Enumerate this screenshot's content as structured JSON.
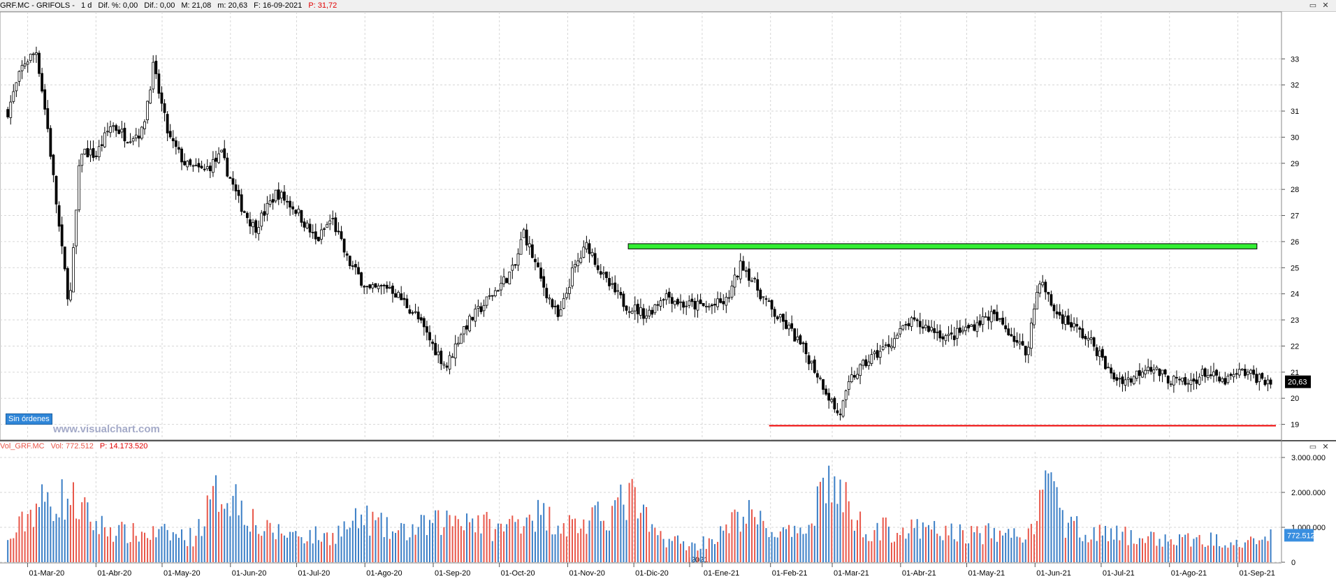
{
  "header": {
    "symbol": "GRF.MC - GRIFOLS -",
    "period": "1 d",
    "dif_pct": "Dif. %: 0,00",
    "dif": "Dif.: 0,00",
    "max": "M: 21,08",
    "min": "m: 20,63",
    "date": "F: 16-09-2021",
    "pointer": "P: 31,72"
  },
  "window_controls": {
    "minimize": "▭",
    "close": "✕"
  },
  "volume_header": {
    "name": "Vol_GRF.MC",
    "vol": "Vol: 772.512",
    "pointer": "P: 14.173.520"
  },
  "badges": {
    "orders": "Sin órdenes",
    "watermark": "www.visualchart.com"
  },
  "colors": {
    "up_volume": "#e8574a",
    "down_volume": "#3a7ec6",
    "resistance": "#33ee33",
    "support": "#ee0000",
    "last_price_tag": "#000000",
    "last_volume_tag": "#3a8fe0"
  },
  "chart_data": [
    {
      "type": "candlestick",
      "title": "GRF.MC - GRIFOLS - 1 d",
      "x_ticks": [
        "01-Mar-20",
        "01-Abr-20",
        "01-May-20",
        "01-Jun-20",
        "01-Jul-20",
        "01-Ago-20",
        "01-Sep-20",
        "01-Oct-20",
        "01-Nov-20",
        "01-Dic-20",
        "01-Ene-21",
        "01-Feb-21",
        "01-Mar-21",
        "01-Abr-21",
        "01-May-21",
        "01-Jun-21",
        "01-Jul-21",
        "01-Ago-21",
        "01-Sep-21"
      ],
      "year_marker": "2021",
      "y_ticks": [
        "33",
        "32",
        "31",
        "30",
        "29",
        "28",
        "27",
        "26",
        "25",
        "24",
        "23",
        "22",
        "21",
        "20",
        "19"
      ],
      "ylim": [
        18.4,
        34.8
      ],
      "last_price": "20,63",
      "grid": true,
      "price_path": [
        {
          "date": "2020-02-21",
          "close": 31.0
        },
        {
          "date": "2020-02-28",
          "close": 32.8
        },
        {
          "date": "2020-03-05",
          "close": 33.3
        },
        {
          "date": "2020-03-10",
          "close": 30.4
        },
        {
          "date": "2020-03-16",
          "close": 26.0
        },
        {
          "date": "2020-03-20",
          "close": 23.5
        },
        {
          "date": "2020-03-25",
          "close": 29.5
        },
        {
          "date": "2020-04-01",
          "close": 29.3
        },
        {
          "date": "2020-04-08",
          "close": 30.5
        },
        {
          "date": "2020-04-15",
          "close": 30.0
        },
        {
          "date": "2020-04-22",
          "close": 30.2
        },
        {
          "date": "2020-04-27",
          "close": 32.7
        },
        {
          "date": "2020-05-04",
          "close": 30.0
        },
        {
          "date": "2020-05-12",
          "close": 28.9
        },
        {
          "date": "2020-05-20",
          "close": 28.7
        },
        {
          "date": "2020-05-28",
          "close": 29.3
        },
        {
          "date": "2020-06-05",
          "close": 27.5
        },
        {
          "date": "2020-06-12",
          "close": 26.5
        },
        {
          "date": "2020-06-22",
          "close": 27.9
        },
        {
          "date": "2020-07-01",
          "close": 27.2
        },
        {
          "date": "2020-07-10",
          "close": 26.0
        },
        {
          "date": "2020-07-17",
          "close": 26.9
        },
        {
          "date": "2020-07-24",
          "close": 25.3
        },
        {
          "date": "2020-08-03",
          "close": 24.1
        },
        {
          "date": "2020-08-12",
          "close": 24.3
        },
        {
          "date": "2020-08-24",
          "close": 23.2
        },
        {
          "date": "2020-09-01",
          "close": 22.0
        },
        {
          "date": "2020-09-07",
          "close": 21.2
        },
        {
          "date": "2020-09-14",
          "close": 22.6
        },
        {
          "date": "2020-09-22",
          "close": 23.4
        },
        {
          "date": "2020-10-01",
          "close": 24.3
        },
        {
          "date": "2020-10-08",
          "close": 25.0
        },
        {
          "date": "2020-10-12",
          "close": 26.4
        },
        {
          "date": "2020-10-20",
          "close": 24.5
        },
        {
          "date": "2020-10-28",
          "close": 23.0
        },
        {
          "date": "2020-11-03",
          "close": 24.8
        },
        {
          "date": "2020-11-10",
          "close": 25.9
        },
        {
          "date": "2020-11-18",
          "close": 24.5
        },
        {
          "date": "2020-11-27",
          "close": 23.6
        },
        {
          "date": "2020-12-07",
          "close": 23.2
        },
        {
          "date": "2020-12-15",
          "close": 24.0
        },
        {
          "date": "2020-12-23",
          "close": 23.6
        },
        {
          "date": "2021-01-04",
          "close": 23.5
        },
        {
          "date": "2021-01-12",
          "close": 23.7
        },
        {
          "date": "2021-01-19",
          "close": 25.2
        },
        {
          "date": "2021-01-26",
          "close": 24.2
        },
        {
          "date": "2021-02-02",
          "close": 23.3
        },
        {
          "date": "2021-02-10",
          "close": 22.6
        },
        {
          "date": "2021-02-18",
          "close": 21.6
        },
        {
          "date": "2021-02-25",
          "close": 20.5
        },
        {
          "date": "2021-03-04",
          "close": 19.3
        },
        {
          "date": "2021-03-10",
          "close": 20.8
        },
        {
          "date": "2021-03-18",
          "close": 21.5
        },
        {
          "date": "2021-03-26",
          "close": 22.0
        },
        {
          "date": "2021-04-05",
          "close": 22.9
        },
        {
          "date": "2021-04-14",
          "close": 22.7
        },
        {
          "date": "2021-04-23",
          "close": 22.3
        },
        {
          "date": "2021-05-04",
          "close": 22.8
        },
        {
          "date": "2021-05-12",
          "close": 23.2
        },
        {
          "date": "2021-05-20",
          "close": 22.6
        },
        {
          "date": "2021-05-28",
          "close": 21.7
        },
        {
          "date": "2021-06-03",
          "close": 24.6
        },
        {
          "date": "2021-06-10",
          "close": 23.3
        },
        {
          "date": "2021-06-18",
          "close": 22.8
        },
        {
          "date": "2021-06-28",
          "close": 22.0
        },
        {
          "date": "2021-07-06",
          "close": 20.8
        },
        {
          "date": "2021-07-14",
          "close": 20.7
        },
        {
          "date": "2021-07-22",
          "close": 21.3
        },
        {
          "date": "2021-07-30",
          "close": 20.8
        },
        {
          "date": "2021-08-09",
          "close": 20.5
        },
        {
          "date": "2021-08-17",
          "close": 21.0
        },
        {
          "date": "2021-08-25",
          "close": 20.6
        },
        {
          "date": "2021-09-03",
          "close": 21.0
        },
        {
          "date": "2021-09-10",
          "close": 20.8
        },
        {
          "date": "2021-09-16",
          "close": 20.63
        }
      ],
      "annotations": [
        {
          "type": "resistance_band",
          "from": "2020-12-01",
          "to": "2021-09-16",
          "y_low": 25.72,
          "y_high": 25.92
        },
        {
          "type": "support_line",
          "from": "2021-02-01",
          "to": "2021-09-16",
          "y": 18.95
        }
      ]
    },
    {
      "type": "bar",
      "title": "Vol_GRF.MC",
      "y_ticks": [
        "3.000.000",
        "2.000.000",
        "1.000.000",
        "0"
      ],
      "ylim": [
        0,
        3000000
      ],
      "last_value": "772.512",
      "volume_path": [
        {
          "date": "2020-02-21",
          "volume": 600000
        },
        {
          "date": "2020-03-05",
          "volume": 1850000
        },
        {
          "date": "2020-03-20",
          "volume": 2050000
        },
        {
          "date": "2020-04-01",
          "volume": 1200000
        },
        {
          "date": "2020-04-15",
          "volume": 900000
        },
        {
          "date": "2020-05-01",
          "volume": 900000
        },
        {
          "date": "2020-05-15",
          "volume": 800000
        },
        {
          "date": "2020-05-27",
          "volume": 2300000
        },
        {
          "date": "2020-06-05",
          "volume": 2000000
        },
        {
          "date": "2020-06-15",
          "volume": 1000000
        },
        {
          "date": "2020-07-01",
          "volume": 900000
        },
        {
          "date": "2020-07-15",
          "volume": 800000
        },
        {
          "date": "2020-08-01",
          "volume": 1400000
        },
        {
          "date": "2020-08-15",
          "volume": 900000
        },
        {
          "date": "2020-09-01",
          "volume": 1200000
        },
        {
          "date": "2020-09-15",
          "volume": 1500000
        },
        {
          "date": "2020-10-01",
          "volume": 1000000
        },
        {
          "date": "2020-10-15",
          "volume": 1600000
        },
        {
          "date": "2020-11-01",
          "volume": 1200000
        },
        {
          "date": "2020-11-10",
          "volume": 1200000
        },
        {
          "date": "2020-11-30",
          "volume": 2050000
        },
        {
          "date": "2020-12-10",
          "volume": 900000
        },
        {
          "date": "2020-12-28",
          "volume": 500000
        },
        {
          "date": "2021-01-10",
          "volume": 900000
        },
        {
          "date": "2021-01-20",
          "volume": 1600000
        },
        {
          "date": "2021-02-01",
          "volume": 1000000
        },
        {
          "date": "2021-02-15",
          "volume": 800000
        },
        {
          "date": "2021-02-26",
          "volume": 2700000
        },
        {
          "date": "2021-03-04",
          "volume": 2200000
        },
        {
          "date": "2021-03-15",
          "volume": 1100000
        },
        {
          "date": "2021-04-01",
          "volume": 1000000
        },
        {
          "date": "2021-04-15",
          "volume": 1000000
        },
        {
          "date": "2021-05-01",
          "volume": 900000
        },
        {
          "date": "2021-05-15",
          "volume": 900000
        },
        {
          "date": "2021-06-01",
          "volume": 900000
        },
        {
          "date": "2021-06-03",
          "volume": 2900000
        },
        {
          "date": "2021-06-15",
          "volume": 1200000
        },
        {
          "date": "2021-07-01",
          "volume": 900000
        },
        {
          "date": "2021-07-15",
          "volume": 800000
        },
        {
          "date": "2021-08-01",
          "volume": 700000
        },
        {
          "date": "2021-08-15",
          "volume": 700000
        },
        {
          "date": "2021-09-01",
          "volume": 750000
        },
        {
          "date": "2021-09-16",
          "volume": 772512
        }
      ]
    }
  ]
}
